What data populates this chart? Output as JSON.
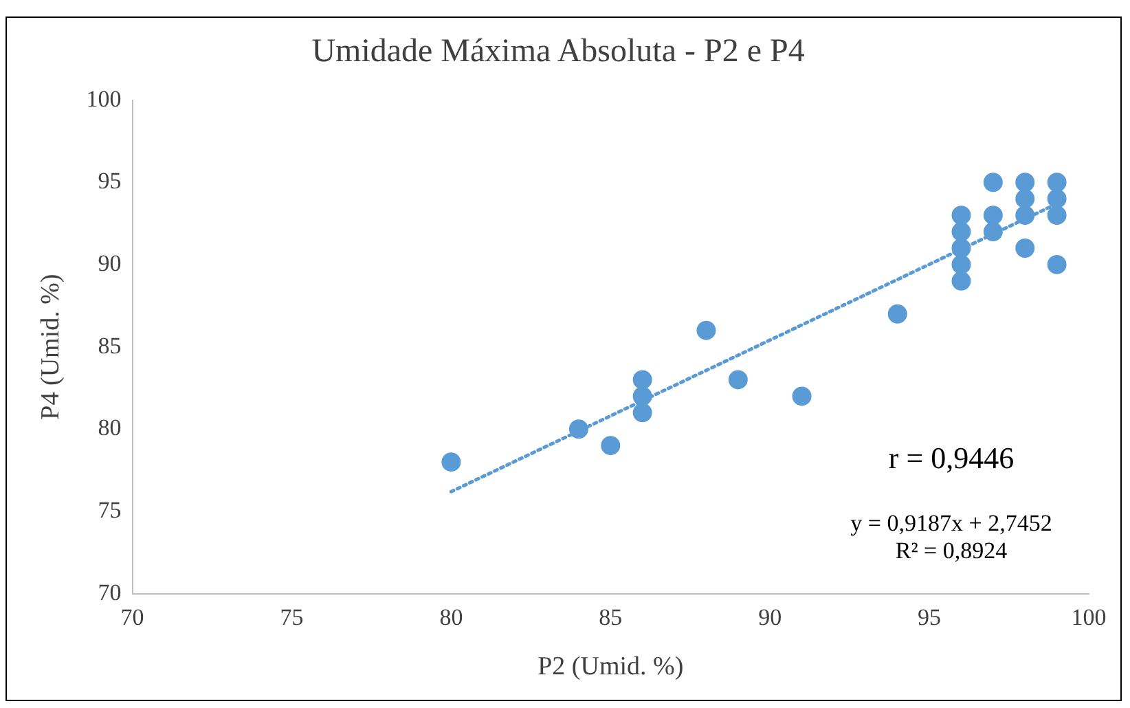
{
  "chart_data": {
    "type": "scatter",
    "title": "Umidade Máxima Absoluta - P2 e P4",
    "xlabel": "P2 (Umid. %)",
    "ylabel": "P4 (Umid. %)",
    "xlim": [
      70,
      100
    ],
    "xticks": [
      70,
      75,
      80,
      85,
      90,
      95,
      100
    ],
    "ylim": [
      70,
      100
    ],
    "yticks": [
      70,
      75,
      80,
      85,
      90,
      95,
      100
    ],
    "grid": false,
    "legend": false,
    "marker": "circle",
    "series": [
      {
        "type": "scatter",
        "color": "#5b9bd5",
        "x": [
          80,
          84,
          85,
          86,
          86,
          86,
          88,
          89,
          91,
          94,
          96,
          96,
          96,
          96,
          96,
          97,
          97,
          97,
          98,
          98,
          98,
          98,
          99,
          99,
          99,
          99
        ],
        "values": [
          78,
          80,
          79,
          83,
          82,
          81,
          86,
          83,
          82,
          87,
          93,
          92,
          91,
          90,
          89,
          95,
          93,
          92,
          95,
          94,
          93,
          91,
          95,
          94,
          93,
          90
        ]
      },
      {
        "type": "line",
        "color": "#5b9bd5",
        "line_style": "dotted",
        "marker": "none",
        "x": [
          80,
          99
        ],
        "values": [
          76.2,
          93.7
        ]
      }
    ],
    "annotations": [
      "r = 0,9446",
      "y = 0,9187x + 2,7452",
      "R² = 0,8924"
    ]
  }
}
